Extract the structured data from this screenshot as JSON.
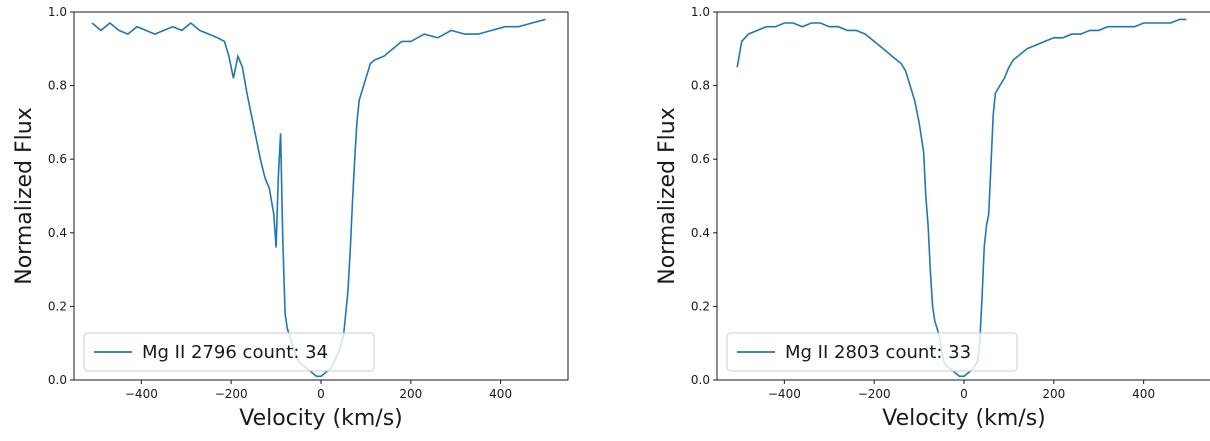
{
  "chart_data": [
    {
      "type": "line",
      "xlabel": "Velocity (km/s)",
      "ylabel": "Normalized Flux",
      "xlim": [
        -550,
        550
      ],
      "ylim": [
        0.0,
        1.0
      ],
      "xticks": [
        -400,
        -200,
        0,
        200,
        400
      ],
      "xtick_labels": [
        "−400",
        "−200",
        "0",
        "200",
        "400"
      ],
      "yticks": [
        0.0,
        0.2,
        0.4,
        0.6,
        0.8,
        1.0
      ],
      "ytick_labels": [
        "0.0",
        "0.2",
        "0.4",
        "0.6",
        "0.8",
        "1.0"
      ],
      "grid": false,
      "legend_position": "lower-left",
      "series": [
        {
          "name": "Mg II 2796 count: 34",
          "color": "#1f77b4",
          "x": [
            -510,
            -490,
            -470,
            -450,
            -430,
            -410,
            -390,
            -370,
            -350,
            -330,
            -310,
            -290,
            -270,
            -250,
            -230,
            -215,
            -205,
            -195,
            -185,
            -175,
            -165,
            -155,
            -145,
            -135,
            -125,
            -115,
            -105,
            -100,
            -95,
            -90,
            -85,
            -80,
            -75,
            -70,
            -60,
            -50,
            -40,
            -30,
            -20,
            -10,
            0,
            10,
            20,
            30,
            40,
            50,
            55,
            60,
            65,
            70,
            75,
            80,
            85,
            90,
            100,
            110,
            120,
            140,
            160,
            180,
            200,
            230,
            260,
            290,
            320,
            350,
            380,
            410,
            440,
            470,
            500
          ],
          "y": [
            0.97,
            0.95,
            0.97,
            0.95,
            0.94,
            0.96,
            0.95,
            0.94,
            0.95,
            0.96,
            0.95,
            0.97,
            0.95,
            0.94,
            0.93,
            0.92,
            0.88,
            0.82,
            0.88,
            0.85,
            0.78,
            0.72,
            0.66,
            0.6,
            0.55,
            0.52,
            0.45,
            0.36,
            0.55,
            0.67,
            0.38,
            0.18,
            0.14,
            0.12,
            0.08,
            0.05,
            0.04,
            0.03,
            0.02,
            0.01,
            0.01,
            0.02,
            0.03,
            0.05,
            0.08,
            0.12,
            0.18,
            0.24,
            0.35,
            0.48,
            0.6,
            0.7,
            0.76,
            0.78,
            0.82,
            0.86,
            0.87,
            0.88,
            0.9,
            0.92,
            0.92,
            0.94,
            0.93,
            0.95,
            0.94,
            0.94,
            0.95,
            0.96,
            0.96,
            0.97,
            0.98
          ]
        }
      ]
    },
    {
      "type": "line",
      "xlabel": "Velocity (km/s)",
      "ylabel": "Normalized Flux",
      "xlim": [
        -550,
        550
      ],
      "ylim": [
        0.0,
        1.0
      ],
      "xticks": [
        -400,
        -200,
        0,
        200,
        400
      ],
      "xtick_labels": [
        "−400",
        "−200",
        "0",
        "200",
        "400"
      ],
      "yticks": [
        0.0,
        0.2,
        0.4,
        0.6,
        0.8,
        1.0
      ],
      "ytick_labels": [
        "0.0",
        "0.2",
        "0.4",
        "0.6",
        "0.8",
        "1.0"
      ],
      "grid": false,
      "legend_position": "lower-left",
      "series": [
        {
          "name": "Mg II 2803 count: 33",
          "color": "#1f77b4",
          "x": [
            -505,
            -495,
            -480,
            -460,
            -440,
            -420,
            -400,
            -380,
            -360,
            -340,
            -320,
            -300,
            -280,
            -260,
            -240,
            -220,
            -200,
            -180,
            -160,
            -140,
            -130,
            -120,
            -110,
            -100,
            -90,
            -85,
            -80,
            -75,
            -70,
            -65,
            -60,
            -55,
            -50,
            -45,
            -40,
            -30,
            -20,
            -10,
            0,
            10,
            20,
            30,
            35,
            40,
            45,
            50,
            55,
            60,
            65,
            70,
            80,
            90,
            100,
            110,
            120,
            140,
            160,
            180,
            200,
            220,
            240,
            260,
            280,
            300,
            320,
            340,
            360,
            380,
            400,
            420,
            440,
            460,
            480,
            495
          ],
          "y": [
            0.85,
            0.92,
            0.94,
            0.95,
            0.96,
            0.96,
            0.97,
            0.97,
            0.96,
            0.97,
            0.97,
            0.96,
            0.96,
            0.95,
            0.95,
            0.94,
            0.92,
            0.9,
            0.88,
            0.86,
            0.84,
            0.8,
            0.76,
            0.7,
            0.62,
            0.5,
            0.42,
            0.3,
            0.2,
            0.16,
            0.14,
            0.12,
            0.08,
            0.05,
            0.04,
            0.03,
            0.02,
            0.01,
            0.01,
            0.02,
            0.03,
            0.05,
            0.1,
            0.22,
            0.36,
            0.42,
            0.45,
            0.58,
            0.72,
            0.78,
            0.8,
            0.82,
            0.85,
            0.87,
            0.88,
            0.9,
            0.91,
            0.92,
            0.93,
            0.93,
            0.94,
            0.94,
            0.95,
            0.95,
            0.96,
            0.96,
            0.96,
            0.96,
            0.97,
            0.97,
            0.97,
            0.97,
            0.98,
            0.98
          ]
        }
      ]
    }
  ]
}
